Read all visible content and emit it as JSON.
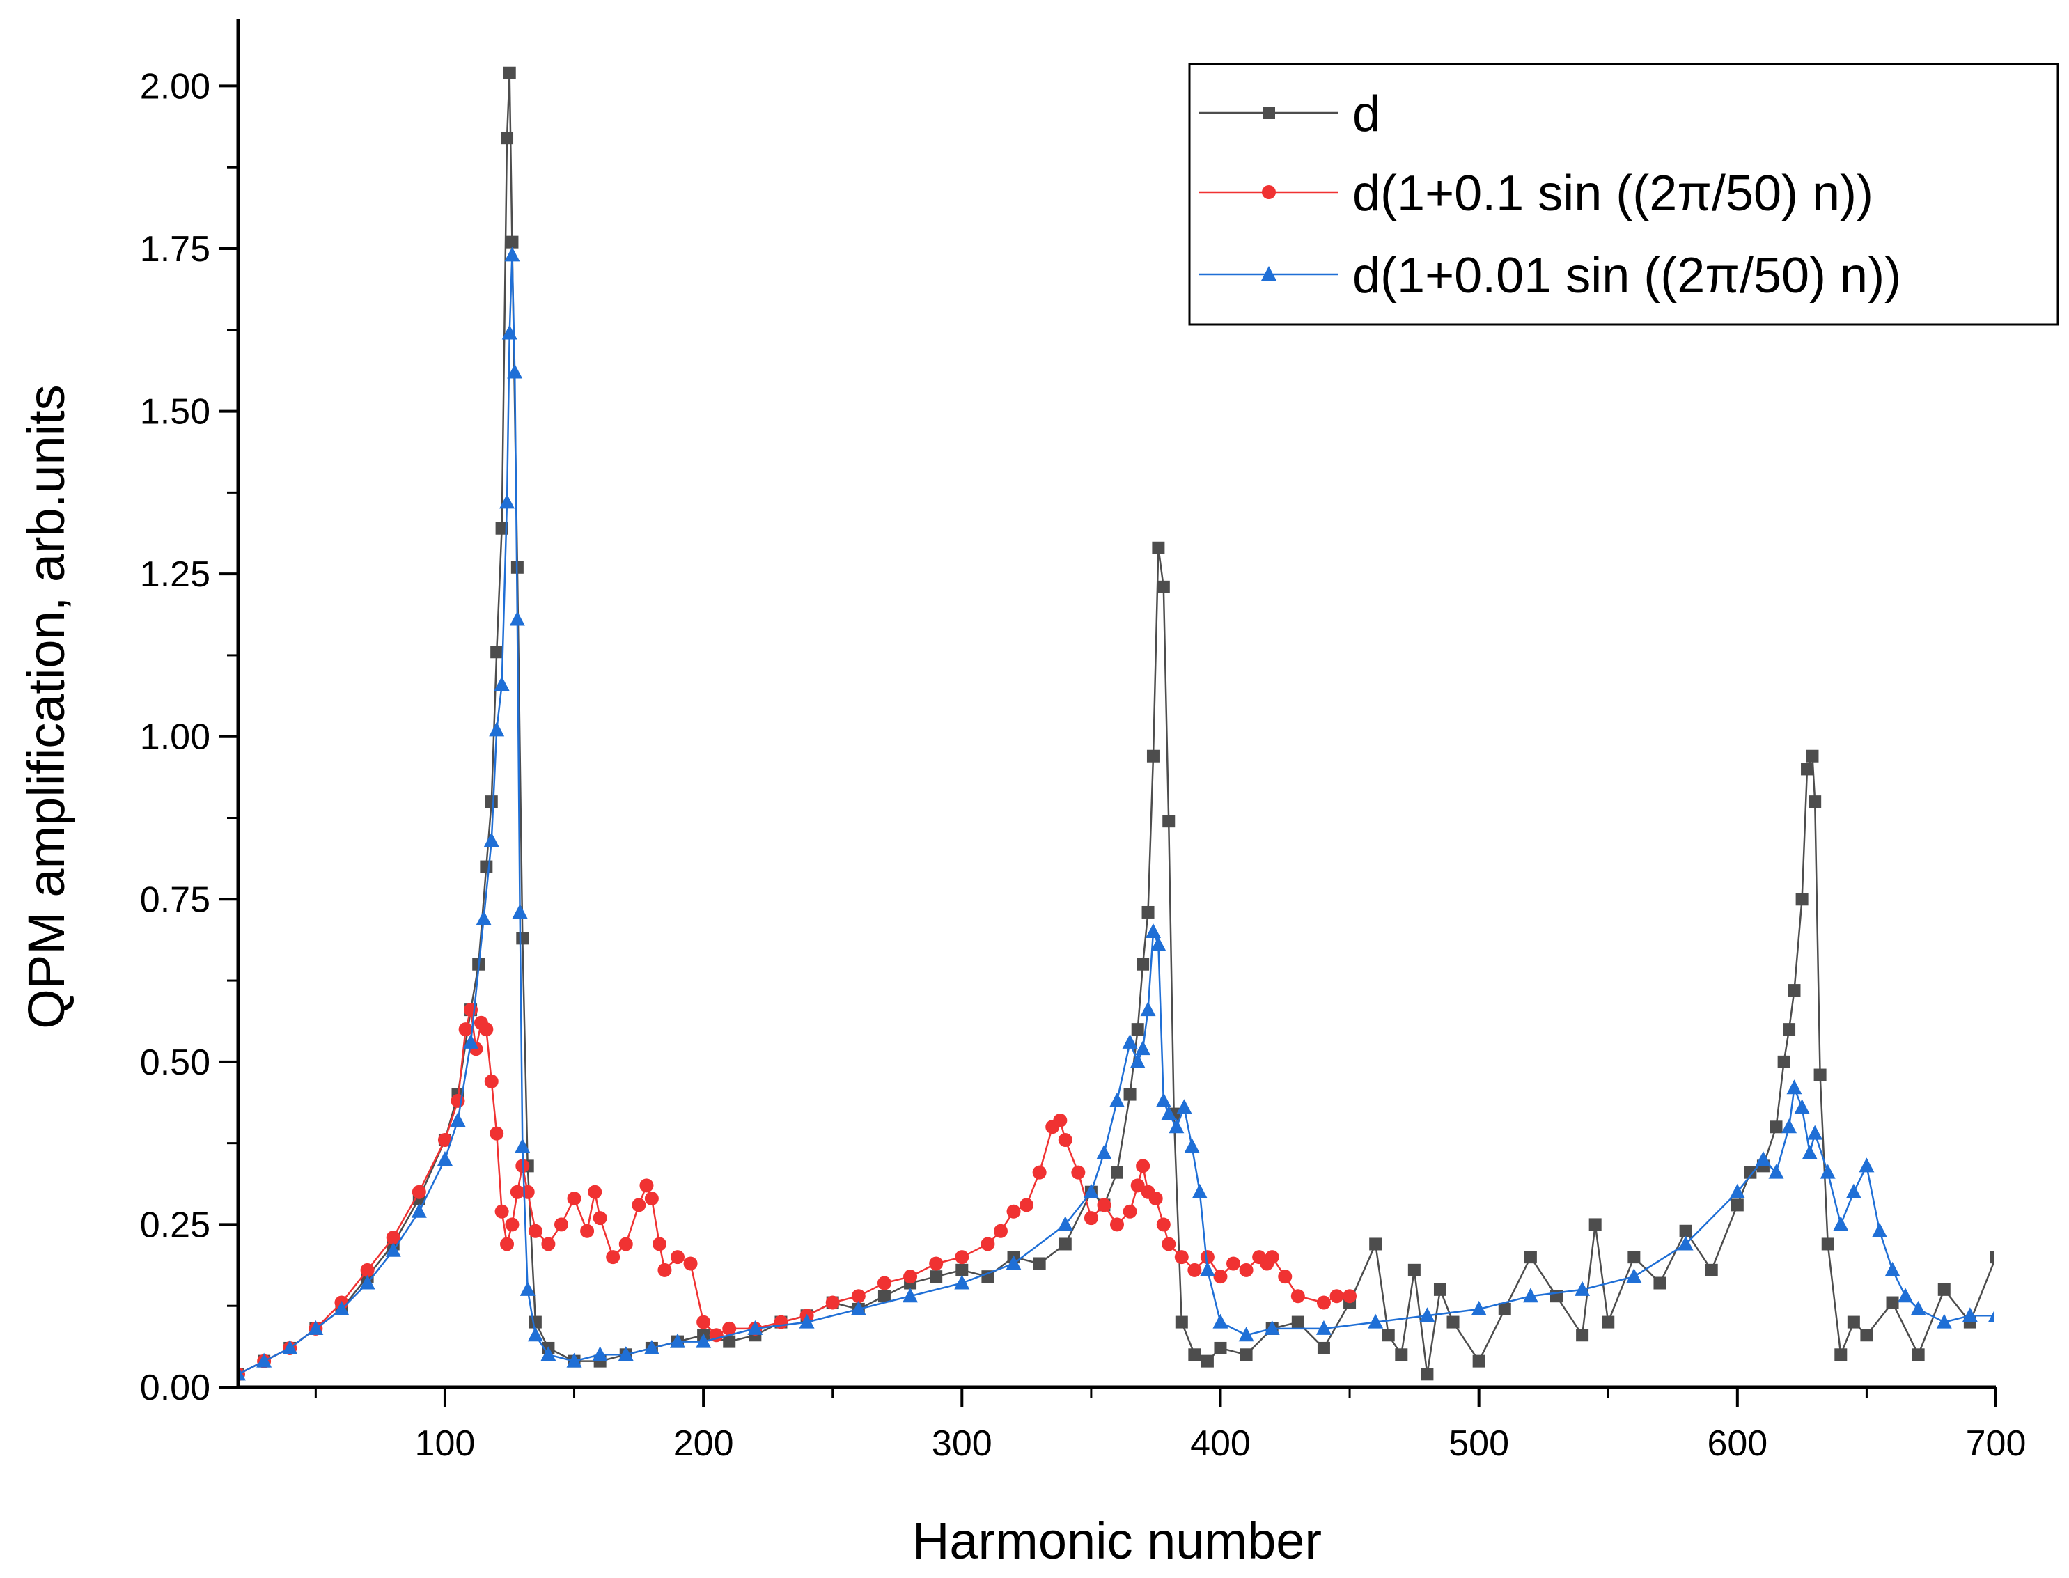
{
  "chart_data": {
    "type": "line",
    "title": "",
    "xlabel": "Harmonic number",
    "ylabel": "QPM amplification, arb.units",
    "xlim": [
      20,
      700
    ],
    "ylim": [
      0,
      2.1
    ],
    "xticks": [
      100,
      200,
      300,
      400,
      500,
      600,
      700
    ],
    "yticks": [
      0.0,
      0.25,
      0.5,
      0.75,
      1.0,
      1.25,
      1.5,
      1.75,
      2.0
    ],
    "xtick_labels": [
      "100",
      "200",
      "300",
      "400",
      "500",
      "600",
      "700"
    ],
    "ytick_labels": [
      "0.00",
      "0.25",
      "0.50",
      "0.75",
      "1.00",
      "1.25",
      "1.50",
      "1.75",
      "2.00"
    ],
    "legend_position": "top-right",
    "series": [
      {
        "name": "d",
        "color": "#4d4d4d",
        "marker": "square",
        "x": [
          20,
          30,
          40,
          50,
          60,
          70,
          80,
          90,
          100,
          105,
          110,
          113,
          116,
          118,
          120,
          122,
          124,
          125,
          126,
          128,
          130,
          132,
          135,
          140,
          150,
          160,
          170,
          180,
          190,
          200,
          210,
          220,
          230,
          240,
          250,
          260,
          270,
          280,
          290,
          300,
          310,
          320,
          330,
          340,
          350,
          355,
          360,
          365,
          368,
          370,
          372,
          374,
          376,
          378,
          380,
          382,
          385,
          390,
          395,
          400,
          410,
          420,
          430,
          440,
          450,
          460,
          465,
          470,
          475,
          480,
          485,
          490,
          500,
          510,
          520,
          530,
          540,
          545,
          550,
          560,
          570,
          580,
          590,
          600,
          605,
          610,
          615,
          618,
          620,
          622,
          625,
          627,
          629,
          630,
          632,
          635,
          640,
          645,
          650,
          660,
          670,
          680,
          690,
          700
        ],
        "values": [
          0.02,
          0.04,
          0.06,
          0.09,
          0.12,
          0.17,
          0.22,
          0.29,
          0.38,
          0.45,
          0.58,
          0.65,
          0.8,
          0.9,
          1.13,
          1.32,
          1.92,
          2.02,
          1.76,
          1.26,
          0.69,
          0.34,
          0.1,
          0.06,
          0.04,
          0.04,
          0.05,
          0.06,
          0.07,
          0.08,
          0.07,
          0.08,
          0.1,
          0.11,
          0.13,
          0.12,
          0.14,
          0.16,
          0.17,
          0.18,
          0.17,
          0.2,
          0.19,
          0.22,
          0.3,
          0.28,
          0.33,
          0.45,
          0.55,
          0.65,
          0.73,
          0.97,
          1.29,
          1.23,
          0.87,
          0.42,
          0.1,
          0.05,
          0.04,
          0.06,
          0.05,
          0.09,
          0.1,
          0.06,
          0.13,
          0.22,
          0.08,
          0.05,
          0.18,
          0.02,
          0.15,
          0.1,
          0.04,
          0.12,
          0.2,
          0.14,
          0.08,
          0.25,
          0.1,
          0.2,
          0.16,
          0.24,
          0.18,
          0.28,
          0.33,
          0.34,
          0.4,
          0.5,
          0.55,
          0.61,
          0.75,
          0.95,
          0.97,
          0.9,
          0.48,
          0.22,
          0.05,
          0.1,
          0.08,
          0.13,
          0.05,
          0.15,
          0.1,
          0.2
        ]
      },
      {
        "name": "d(1+0.1 sin ((2π/50) n))",
        "color": "#f03232",
        "marker": "circle",
        "x": [
          20,
          30,
          40,
          50,
          60,
          70,
          80,
          90,
          100,
          105,
          108,
          110,
          112,
          114,
          116,
          118,
          120,
          122,
          124,
          126,
          128,
          130,
          132,
          135,
          140,
          145,
          150,
          155,
          158,
          160,
          165,
          170,
          175,
          178,
          180,
          183,
          185,
          190,
          195,
          200,
          205,
          210,
          220,
          230,
          240,
          250,
          260,
          270,
          280,
          290,
          300,
          310,
          315,
          320,
          325,
          330,
          335,
          338,
          340,
          345,
          350,
          355,
          360,
          365,
          368,
          370,
          372,
          375,
          378,
          380,
          385,
          390,
          395,
          400,
          405,
          410,
          415,
          418,
          420,
          425,
          430,
          440,
          445,
          450
        ],
        "values": [
          0.02,
          0.04,
          0.06,
          0.09,
          0.13,
          0.18,
          0.23,
          0.3,
          0.38,
          0.44,
          0.55,
          0.58,
          0.52,
          0.56,
          0.55,
          0.47,
          0.39,
          0.27,
          0.22,
          0.25,
          0.3,
          0.34,
          0.3,
          0.24,
          0.22,
          0.25,
          0.29,
          0.24,
          0.3,
          0.26,
          0.2,
          0.22,
          0.28,
          0.31,
          0.29,
          0.22,
          0.18,
          0.2,
          0.19,
          0.1,
          0.08,
          0.09,
          0.09,
          0.1,
          0.11,
          0.13,
          0.14,
          0.16,
          0.17,
          0.19,
          0.2,
          0.22,
          0.24,
          0.27,
          0.28,
          0.33,
          0.4,
          0.41,
          0.38,
          0.33,
          0.26,
          0.28,
          0.25,
          0.27,
          0.31,
          0.34,
          0.3,
          0.29,
          0.25,
          0.22,
          0.2,
          0.18,
          0.2,
          0.17,
          0.19,
          0.18,
          0.2,
          0.19,
          0.2,
          0.17,
          0.14,
          0.13,
          0.14,
          0.14
        ]
      },
      {
        "name": "d(1+0.01 sin ((2π/50) n))",
        "color": "#1f6fd6",
        "marker": "triangle",
        "x": [
          20,
          30,
          40,
          50,
          60,
          70,
          80,
          90,
          100,
          105,
          110,
          115,
          118,
          120,
          122,
          124,
          125,
          126,
          127,
          128,
          129,
          130,
          132,
          135,
          140,
          150,
          160,
          170,
          180,
          190,
          200,
          220,
          240,
          260,
          280,
          300,
          320,
          340,
          350,
          355,
          360,
          365,
          368,
          370,
          372,
          374,
          376,
          378,
          380,
          383,
          386,
          389,
          392,
          395,
          400,
          410,
          420,
          440,
          460,
          480,
          500,
          520,
          540,
          560,
          580,
          600,
          610,
          615,
          620,
          622,
          625,
          628,
          630,
          635,
          640,
          645,
          650,
          655,
          660,
          665,
          670,
          680,
          690,
          700
        ],
        "values": [
          0.02,
          0.04,
          0.06,
          0.09,
          0.12,
          0.16,
          0.21,
          0.27,
          0.35,
          0.41,
          0.53,
          0.72,
          0.84,
          1.01,
          1.08,
          1.36,
          1.62,
          1.74,
          1.56,
          1.18,
          0.73,
          0.37,
          0.15,
          0.08,
          0.05,
          0.04,
          0.05,
          0.05,
          0.06,
          0.07,
          0.07,
          0.09,
          0.1,
          0.12,
          0.14,
          0.16,
          0.19,
          0.25,
          0.3,
          0.36,
          0.44,
          0.53,
          0.5,
          0.52,
          0.58,
          0.7,
          0.68,
          0.44,
          0.42,
          0.4,
          0.43,
          0.37,
          0.3,
          0.18,
          0.1,
          0.08,
          0.09,
          0.09,
          0.1,
          0.11,
          0.12,
          0.14,
          0.15,
          0.17,
          0.22,
          0.3,
          0.35,
          0.33,
          0.4,
          0.46,
          0.43,
          0.36,
          0.39,
          0.33,
          0.25,
          0.3,
          0.34,
          0.24,
          0.18,
          0.14,
          0.12,
          0.1,
          0.11,
          0.11
        ]
      }
    ]
  }
}
